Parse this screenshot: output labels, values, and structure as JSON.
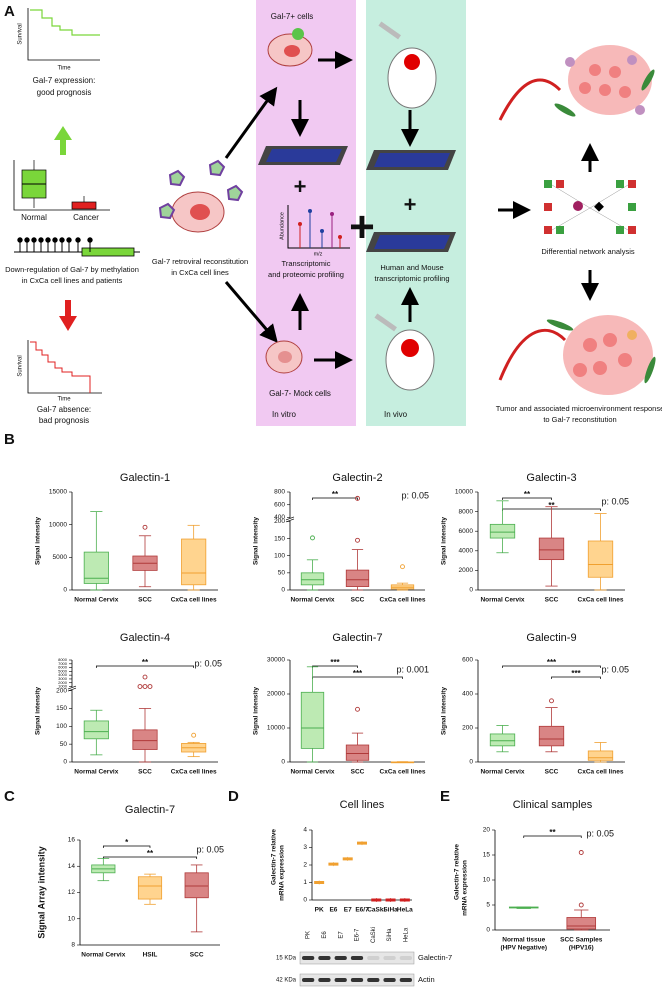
{
  "panel_labels": [
    "A",
    "B",
    "C",
    "D",
    "E"
  ],
  "panel_a": {
    "good_curve": {
      "y_label": "Survival",
      "x_label": "Time",
      "caption": [
        "Gal-7 expression:",
        "good prognosis"
      ]
    },
    "boxes": [
      "Normal",
      "Cancer"
    ],
    "methylation": [
      "Down-regulation of Gal-7 by methylation",
      "in CxCa cell lines and patients"
    ],
    "bad_curve": {
      "y_label": "Survival",
      "x_label": "Time",
      "caption": [
        "Gal-7 absence:",
        "bad prognosis"
      ]
    },
    "reconstitution": [
      "Gal-7 retroviral reconstitution",
      "in CxCa cell lines"
    ],
    "in_vitro": {
      "top": "Gal-7+ cells",
      "spectrum_y": "Abundance",
      "spectrum_x": "m/z",
      "profiling": [
        "Transcriptomic",
        "and proteomic profiling"
      ],
      "bottom": "Gal-7- Mock cells",
      "label": "In vitro"
    },
    "in_vivo": {
      "profiling": [
        "Human and Mouse",
        "transcriptomic profiling"
      ],
      "label": "In vivo"
    },
    "network": "Differential network analysis",
    "response": [
      "Tumor and associated microenvironment response",
      "to Gal-7 reconstitution"
    ]
  },
  "chart_data": [
    {
      "type": "box",
      "title": "Galectin-1",
      "y_label": "Signal intensity",
      "categories": [
        "Normal Cervix",
        "SCC",
        "CxCa cell lines"
      ],
      "colors": [
        "#bdeab3",
        "#d98585",
        "#ffd48f"
      ],
      "edge_colors": [
        "#4caf50",
        "#b03a3a",
        "#f0a030"
      ],
      "boxes": [
        {
          "min": 0,
          "q1": 1000,
          "median": 1800,
          "q3": 5800,
          "max": 12000,
          "outliers": []
        },
        {
          "min": 500,
          "q1": 3000,
          "median": 4100,
          "q3": 5200,
          "max": 8300,
          "outliers": [
            9600
          ]
        },
        {
          "min": 0,
          "q1": 800,
          "median": 2600,
          "q3": 7800,
          "max": 9900,
          "outliers": []
        }
      ],
      "ylim": [
        0,
        15000
      ],
      "yticks": [
        0,
        5000,
        10000,
        15000
      ]
    },
    {
      "type": "box",
      "title": "Galectin-2",
      "y_label": "Signal intensity",
      "categories": [
        "Normal Cervix",
        "SCC",
        "CxCa cell lines"
      ],
      "colors": [
        "#bdeab3",
        "#d98585",
        "#ffd48f"
      ],
      "edge_colors": [
        "#4caf50",
        "#b03a3a",
        "#f0a030"
      ],
      "boxes": [
        {
          "min": 0,
          "q1": 15,
          "median": 30,
          "q3": 50,
          "max": 88,
          "outliers": [
            152
          ]
        },
        {
          "min": 0,
          "q1": 10,
          "median": 30,
          "q3": 58,
          "max": 118,
          "outliers": [
            145,
            700
          ]
        },
        {
          "min": 0,
          "q1": 3,
          "median": 8,
          "q3": 15,
          "max": 20,
          "outliers": [
            68
          ]
        }
      ],
      "ylim": [
        0,
        800
      ],
      "ybreak": [
        200,
        400
      ],
      "yticks": [
        0,
        50,
        100,
        150,
        200,
        400,
        600,
        800
      ],
      "brackets": [
        {
          "between": [
            "Normal Cervix",
            "SCC"
          ],
          "label": "**"
        }
      ],
      "p_label": "p: 0.05"
    },
    {
      "type": "box",
      "title": "Galectin-3",
      "y_label": "Signal intensity",
      "categories": [
        "Normal Cervix",
        "SCC",
        "CxCa cell lines"
      ],
      "colors": [
        "#bdeab3",
        "#d98585",
        "#ffd48f"
      ],
      "edge_colors": [
        "#4caf50",
        "#b03a3a",
        "#f0a030"
      ],
      "boxes": [
        {
          "min": 3800,
          "q1": 5300,
          "median": 5900,
          "q3": 6700,
          "max": 9100,
          "outliers": []
        },
        {
          "min": 400,
          "q1": 3100,
          "median": 4100,
          "q3": 5300,
          "max": 8500,
          "outliers": []
        },
        {
          "min": 0,
          "q1": 1300,
          "median": 2600,
          "q3": 5000,
          "max": 7800,
          "outliers": []
        }
      ],
      "ylim": [
        0,
        10000
      ],
      "yticks": [
        0,
        2000,
        4000,
        6000,
        8000,
        10000
      ],
      "brackets": [
        {
          "between": [
            "Normal Cervix",
            "SCC"
          ],
          "label": "**"
        },
        {
          "between": [
            "Normal Cervix",
            "CxCa cell lines"
          ],
          "label": "**"
        }
      ],
      "p_label": "p: 0.05"
    },
    {
      "type": "box",
      "title": "Galectin-4",
      "y_label": "Signal intensity",
      "categories": [
        "Normal Cervix",
        "SCC",
        "CxCa cell lines"
      ],
      "colors": [
        "#bdeab3",
        "#d98585",
        "#ffd48f"
      ],
      "edge_colors": [
        "#4caf50",
        "#b03a3a",
        "#f0a030"
      ],
      "boxes": [
        {
          "min": 20,
          "q1": 65,
          "median": 85,
          "q3": 115,
          "max": 145,
          "outliers": []
        },
        {
          "min": 0,
          "q1": 35,
          "median": 60,
          "q3": 90,
          "max": 150,
          "outliers": [
            3500,
            1000,
            1000,
            1000
          ]
        },
        {
          "min": 15,
          "q1": 28,
          "median": 40,
          "q3": 52,
          "max": 55,
          "outliers": [
            75
          ]
        }
      ],
      "ylim": [
        0,
        8000
      ],
      "ybreak": [
        200,
        1000
      ],
      "yticks": [
        0,
        50,
        100,
        150,
        200,
        1000,
        2000,
        3000,
        4000,
        5000,
        6000,
        7000,
        8000
      ],
      "brackets": [
        {
          "between": [
            "Normal Cervix",
            "CxCa cell lines"
          ],
          "label": "**"
        }
      ],
      "p_label": "p: 0.05"
    },
    {
      "type": "box",
      "title": "Galectin-7",
      "y_label": "Signal intensity",
      "categories": [
        "Normal Cervix",
        "SCC",
        "CxCa cell lines"
      ],
      "colors": [
        "#bdeab3",
        "#d98585",
        "#ffd48f"
      ],
      "edge_colors": [
        "#4caf50",
        "#b03a3a",
        "#f0a030"
      ],
      "boxes": [
        {
          "min": 0,
          "q1": 4000,
          "median": 10000,
          "q3": 20500,
          "max": 28000,
          "outliers": []
        },
        {
          "min": 0,
          "q1": 500,
          "median": 2500,
          "q3": 5000,
          "max": 8500,
          "outliers": [
            15500
          ]
        },
        {
          "min": 0,
          "q1": 0,
          "median": 0,
          "q3": 0,
          "max": 100,
          "outliers": []
        }
      ],
      "ylim": [
        0,
        30000
      ],
      "yticks": [
        0,
        10000,
        20000,
        30000
      ],
      "brackets": [
        {
          "between": [
            "Normal Cervix",
            "SCC"
          ],
          "label": "***"
        },
        {
          "between": [
            "Normal Cervix",
            "CxCa cell lines"
          ],
          "label": "***"
        }
      ],
      "p_label": "p: 0.001"
    },
    {
      "type": "box",
      "title": "Galectin-9",
      "y_label": "Signal intensity",
      "categories": [
        "Normal Cervix",
        "SCC",
        "CxCa cell lines"
      ],
      "colors": [
        "#bdeab3",
        "#d98585",
        "#ffd48f"
      ],
      "edge_colors": [
        "#4caf50",
        "#b03a3a",
        "#f0a030"
      ],
      "boxes": [
        {
          "min": 60,
          "q1": 95,
          "median": 125,
          "q3": 165,
          "max": 215,
          "outliers": []
        },
        {
          "min": 60,
          "q1": 95,
          "median": 135,
          "q3": 210,
          "max": 320,
          "outliers": [
            360
          ]
        },
        {
          "min": 0,
          "q1": 10,
          "median": 25,
          "q3": 65,
          "max": 115,
          "outliers": []
        }
      ],
      "ylim": [
        0,
        600
      ],
      "yticks": [
        0,
        200,
        400,
        600
      ],
      "brackets": [
        {
          "between": [
            "Normal Cervix",
            "CxCa cell lines"
          ],
          "label": "***"
        },
        {
          "between": [
            "SCC",
            "CxCa cell lines"
          ],
          "label": "***"
        }
      ],
      "p_label": "p: 0.05"
    },
    {
      "type": "box",
      "title": "Galectin-7",
      "y_label": "Signal Array intensity",
      "categories": [
        "Normal Cervix",
        "HSIL",
        "SCC"
      ],
      "colors": [
        "#bdeab3",
        "#ffd48f",
        "#d98585"
      ],
      "edge_colors": [
        "#4caf50",
        "#f0a030",
        "#b03a3a"
      ],
      "boxes": [
        {
          "min": 12.9,
          "q1": 13.5,
          "median": 13.8,
          "q3": 14.1,
          "max": 14.6,
          "outliers": []
        },
        {
          "min": 11.1,
          "q1": 11.5,
          "median": 12.5,
          "q3": 13.2,
          "max": 13.4,
          "outliers": []
        },
        {
          "min": 9.0,
          "q1": 11.6,
          "median": 12.5,
          "q3": 13.5,
          "max": 14.1,
          "outliers": []
        }
      ],
      "ylim": [
        8,
        16
      ],
      "yticks": [
        8,
        10,
        12,
        14,
        16
      ],
      "brackets": [
        {
          "between": [
            "Normal Cervix",
            "HSIL"
          ],
          "label": "*"
        },
        {
          "between": [
            "Normal Cervix",
            "SCC"
          ],
          "label": "**"
        }
      ],
      "p_label": "p: 0.05"
    },
    {
      "type": "dot",
      "title": "Cell lines",
      "y_label": [
        "Galectin-7 relative",
        "mRNA expression"
      ],
      "categories": [
        "PK",
        "E6",
        "E7",
        "E6/7",
        "CaSki",
        "SiHa",
        "HeLa"
      ],
      "values": [
        1.0,
        2.05,
        2.35,
        3.25,
        0,
        0,
        0
      ],
      "colors": [
        "#f0a030",
        "#f0a030",
        "#f0a030",
        "#f0a030",
        "#d02020",
        "#d02020",
        "#d02020"
      ],
      "ylim": [
        0,
        4
      ],
      "yticks": [
        0,
        1,
        2,
        3,
        4
      ],
      "blot": {
        "lanes": [
          "PK",
          "E6",
          "E7",
          "E6-7",
          "CaSki",
          "SiHa",
          "HeLa"
        ],
        "rows": [
          {
            "size": "15 KDa",
            "protein": "Galectin-7"
          },
          {
            "size": "42 KDa",
            "protein": "Actin"
          }
        ]
      }
    },
    {
      "type": "box",
      "title": "Clinical samples",
      "y_label": [
        "Galectin-7 relative",
        "mRNA expression"
      ],
      "categories": [
        "Normal tissue",
        "SCC Samples"
      ],
      "category_notes": [
        "(HPV Negative)",
        "(HPV16)"
      ],
      "colors": [
        "#bdeab3",
        "#d98585"
      ],
      "edge_colors": [
        "#4caf50",
        "#b03a3a"
      ],
      "boxes": [
        {
          "min": 4.3,
          "q1": 4.4,
          "median": 4.5,
          "q3": 4.6,
          "max": 4.6,
          "outliers": []
        },
        {
          "min": 0,
          "q1": 0.2,
          "median": 0.8,
          "q3": 2.5,
          "max": 4,
          "outliers": [
            5,
            15.5
          ]
        }
      ],
      "ylim": [
        0,
        20
      ],
      "yticks": [
        0,
        5,
        10,
        15,
        20
      ],
      "brackets": [
        {
          "between": [
            "Normal tissue",
            "SCC Samples"
          ],
          "label": "**"
        }
      ],
      "p_label": "p: 0.05"
    }
  ]
}
